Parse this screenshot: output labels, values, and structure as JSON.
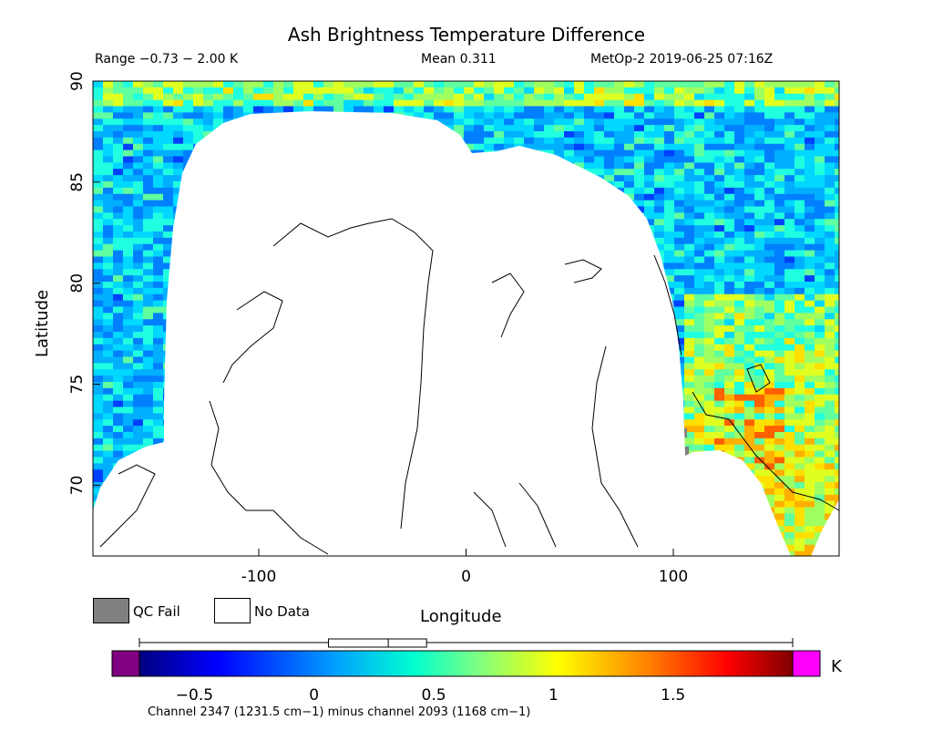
{
  "title": "Ash Brightness Temperature Difference",
  "header": {
    "range": "Range −0.73 − 2.00 K",
    "mean": "Mean 0.311",
    "satellite": "MetOp-2 2019-06-25 07:16Z"
  },
  "chart_data": {
    "type": "heatmap",
    "title": "Ash Brightness Temperature Difference",
    "xlabel": "Longitude",
    "ylabel": "Latitude",
    "xlim": [
      -180,
      180
    ],
    "ylim": [
      66.5,
      90
    ],
    "x_ticks": [
      -100,
      0,
      100
    ],
    "y_ticks": [
      70,
      75,
      80,
      85,
      90
    ],
    "grid": false,
    "colorbar": {
      "min": -0.73,
      "max": 2.0,
      "ticks": [
        -0.5,
        0,
        0.5,
        1,
        1.5
      ],
      "unit": "K",
      "box_plot": {
        "min": -0.73,
        "q1": 0.06,
        "median": 0.31,
        "q3": 0.47,
        "max": 2.0
      }
    },
    "legend": [
      {
        "label": "QC Fail",
        "color": "#808080"
      },
      {
        "label": "No Data",
        "color": "#ffffff"
      }
    ],
    "colors": {
      "under": "#800080",
      "over": "#ff00ff",
      "qc_fail": "#808080",
      "no_data": "#ffffff"
    }
  },
  "caption": "Channel 2347 (1231.5 cm−1) minus channel 2093 (1168 cm−1)"
}
